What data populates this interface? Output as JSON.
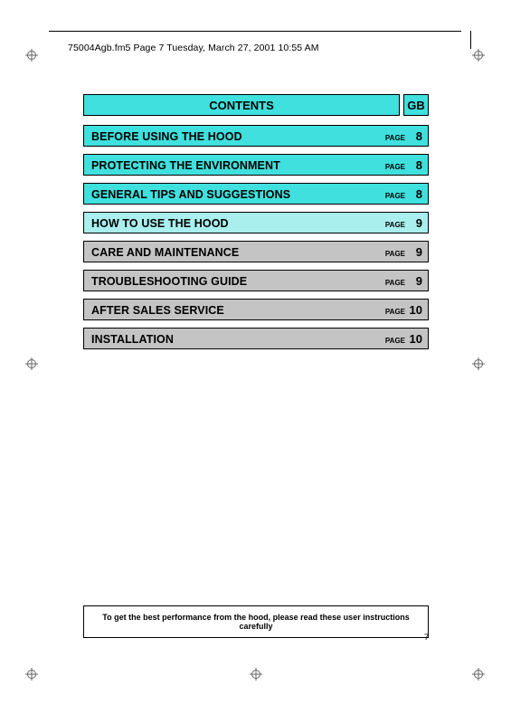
{
  "header_text": "75004Agb.fm5  Page 7  Tuesday, March 27, 2001  10:55 AM",
  "contents": {
    "title": "CONTENTS",
    "lang": "GB"
  },
  "colors": {
    "cyan": "#3fe0dd",
    "cyan_light": "#a8efee",
    "grey": "#c4c4c4"
  },
  "toc": [
    {
      "title": "BEFORE USING THE HOOD",
      "page_label": "PAGE",
      "page": "8",
      "bg": "#3fe0dd"
    },
    {
      "title": "PROTECTING THE ENVIRONMENT",
      "page_label": "PAGE",
      "page": "8",
      "bg": "#3fe0dd"
    },
    {
      "title": "GENERAL TIPS AND SUGGESTIONS",
      "page_label": "PAGE",
      "page": "8",
      "bg": "#3fe0dd"
    },
    {
      "title": "HOW TO USE THE HOOD",
      "page_label": "PAGE",
      "page": "9",
      "bg": "#a8efee"
    },
    {
      "title": "CARE AND MAINTENANCE",
      "page_label": "PAGE",
      "page": "9",
      "bg": "#c4c4c4"
    },
    {
      "title": "TROUBLESHOOTING GUIDE",
      "page_label": "PAGE",
      "page": "9",
      "bg": "#c4c4c4"
    },
    {
      "title": "AFTER SALES SERVICE",
      "page_label": "PAGE",
      "page": "10",
      "bg": "#c4c4c4"
    },
    {
      "title": "INSTALLATION",
      "page_label": "PAGE",
      "page": "10",
      "bg": "#c4c4c4"
    }
  ],
  "footer_text": "To get the best performance from the hood, please read these user instructions carefully",
  "page_number": "7"
}
